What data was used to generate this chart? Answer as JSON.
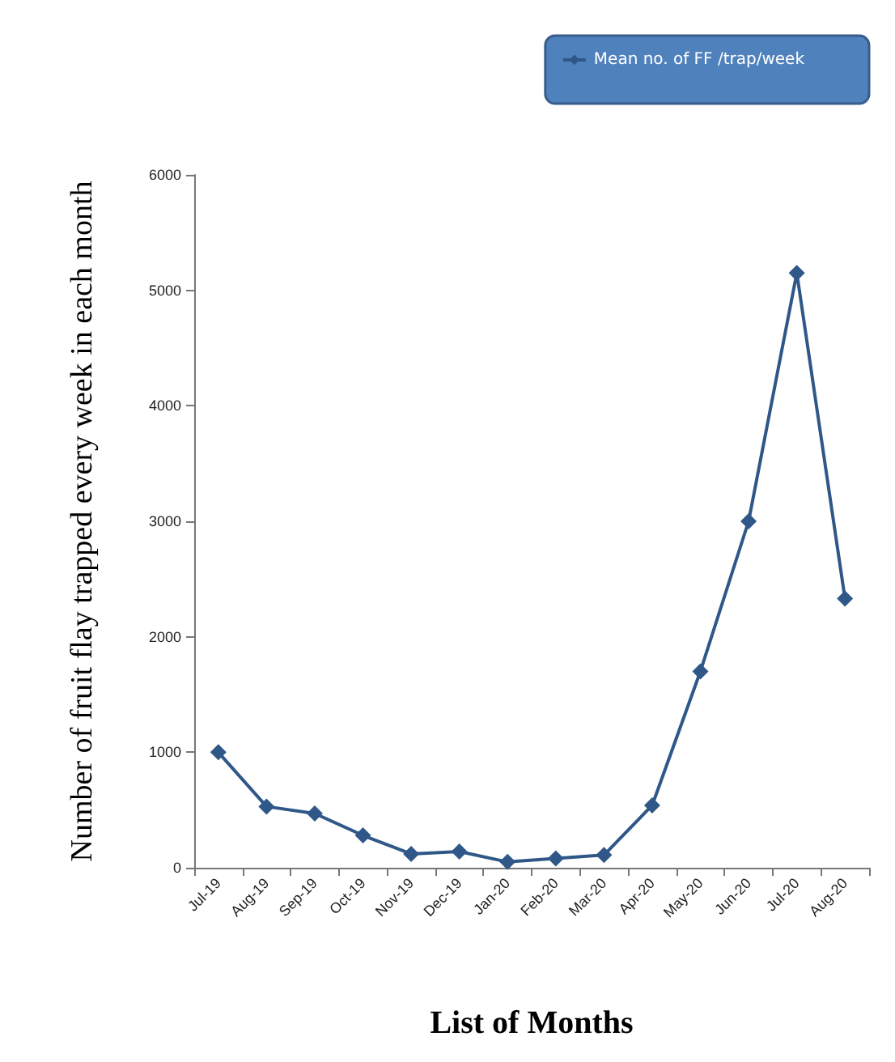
{
  "chart_data": {
    "type": "line",
    "xlabel": "List of Months",
    "ylabel": "Number of fruit flay trapped every week in each month",
    "categories": [
      "Jul-19",
      "Aug-19",
      "Sep-19",
      "Oct-19",
      "Nov-19",
      "Dec-19",
      "Jan-20",
      "Feb-20",
      "Mar-20",
      "Apr-20",
      "May-20",
      "Jun-20",
      "Jul-20",
      "Aug-20"
    ],
    "series": [
      {
        "name": "Mean no. of FF /trap/week",
        "color": "#2f5888",
        "values": [
          1000,
          530,
          470,
          280,
          120,
          140,
          50,
          80,
          110,
          540,
          1700,
          3000,
          5150,
          2330
        ]
      }
    ],
    "ylim": [
      0,
      6000
    ],
    "yticks": [
      0,
      1000,
      2000,
      3000,
      4000,
      5000,
      6000
    ],
    "grid": false,
    "legend": "top right",
    "marker": "diamond",
    "line_style": "solid"
  }
}
